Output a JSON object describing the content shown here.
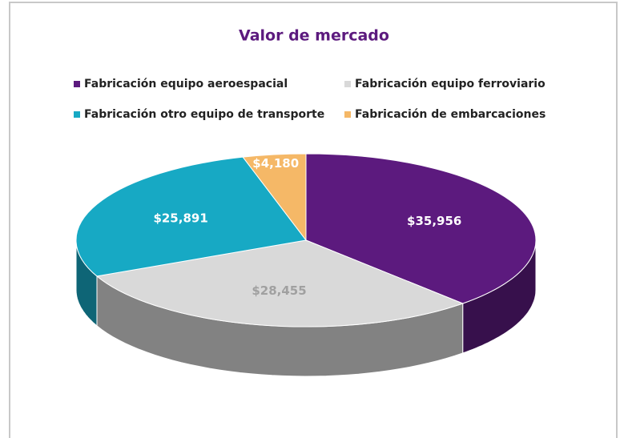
{
  "chart_data": {
    "type": "pie3d",
    "title": "Valor de mercado",
    "categories": [
      "Fabricación equipo aeroespacial",
      "Fabricación equipo ferroviario",
      "Fabricación otro equipo de transporte",
      "Fabricación de embarcaciones"
    ],
    "values": [
      35956,
      28455,
      25891,
      4180
    ],
    "value_labels": [
      "$35,956",
      "$28,455",
      "$25,891",
      "$4,180"
    ],
    "colors": [
      "#5c1a7e",
      "#d9d9d9",
      "#17a9c4",
      "#f5b867"
    ],
    "legend": "top"
  }
}
